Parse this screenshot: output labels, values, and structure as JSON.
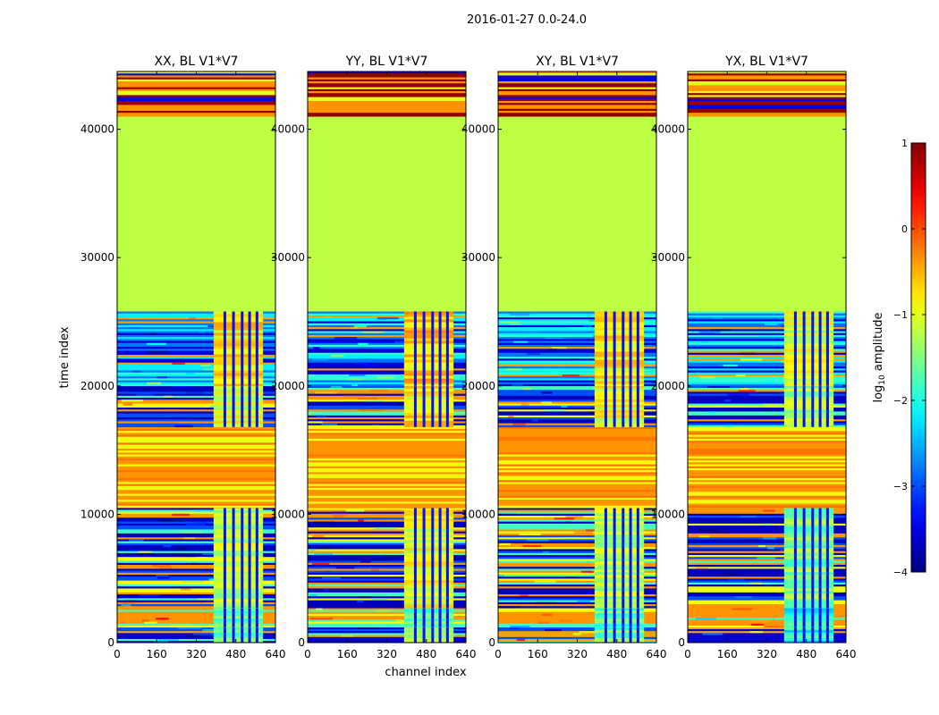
{
  "chart_data": {
    "type": "heatmap",
    "suptitle": "2016-01-27 0.0-24.0",
    "xlabel": "channel index",
    "ylabel": "time index",
    "xlim": [
      0,
      640
    ],
    "ylim": [
      0,
      44500
    ],
    "xticks": [
      0,
      160,
      320,
      480,
      640
    ],
    "yticks": [
      0,
      10000,
      20000,
      30000,
      40000
    ],
    "colormap": "jet",
    "colorbar": {
      "label": "log10 amplitude",
      "label_base": "log",
      "label_sub": "10",
      "label_rest": "amplitude",
      "vmin": -4,
      "vmax": 1,
      "ticks": [
        -4,
        -3,
        -2,
        -1,
        0,
        1
      ],
      "tick_labels": [
        "−4",
        "−3",
        "−2",
        "−1",
        "0",
        "1"
      ]
    },
    "panels": [
      {
        "title": "XX, BL V1*V7"
      },
      {
        "title": "YY, BL V1*V7"
      },
      {
        "title": "XY, BL V1*V7"
      },
      {
        "title": "YX, BL V1*V7"
      }
    ],
    "time_segments": [
      {
        "t0": 0,
        "t1": 1200,
        "kind": "mixed",
        "pattern": "blue-stripes",
        "band_value": -1.7
      },
      {
        "t0": 1200,
        "t1": 2700,
        "kind": "mixed",
        "pattern": "orange-yellow",
        "band_value": -1.7
      },
      {
        "t0": 2700,
        "t1": 10500,
        "kind": "mixed",
        "pattern": "blue-orange-stripes",
        "band_value": -1.2
      },
      {
        "t0": 10500,
        "t1": 16800,
        "kind": "flag",
        "pattern": "orange-yellow-stripes"
      },
      {
        "t0": 16800,
        "t1": 20000,
        "kind": "mixed",
        "pattern": "blue-orange-stripes",
        "band_value": -1.0
      },
      {
        "t0": 20000,
        "t1": 25800,
        "kind": "mixed",
        "pattern": "noisy-blue",
        "band_value": -0.8
      },
      {
        "t0": 25800,
        "t1": 41000,
        "kind": "flag",
        "value": -1.2
      },
      {
        "t0": 41000,
        "t1": 44500,
        "kind": "flag",
        "pattern": "darkred-orange"
      }
    ],
    "band_channels": [
      390,
      590
    ],
    "band_gaps": [
      430,
      465,
      500,
      530,
      560
    ]
  }
}
